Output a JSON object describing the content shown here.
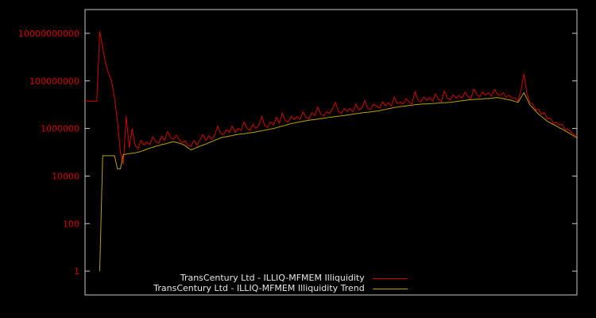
{
  "page": {
    "background": "#000000"
  },
  "chart_data": {
    "type": "line",
    "title": "",
    "xlabel": "",
    "ylabel": "",
    "yscale": "log",
    "ylim": [
      0.1,
      100000000000.0
    ],
    "grid": false,
    "legend_position": "bottom-center",
    "colors": {
      "background": "#000000",
      "border": "#c8c8c8",
      "tick_label": "#d40000",
      "legend_text": "#e6e6e6"
    },
    "yticks": [
      {
        "value": 1,
        "label": "1"
      },
      {
        "value": 100,
        "label": "100"
      },
      {
        "value": 10000,
        "label": "10000"
      },
      {
        "value": 1000000,
        "label": "1000000"
      },
      {
        "value": 100000000,
        "label": "100000000"
      },
      {
        "value": 10000000000,
        "label": "10000000000"
      }
    ],
    "x_description": "observation index (x axis has no visible tick labels)",
    "series": [
      {
        "name": "TransCentury Ltd - ILLIQ-MFMEM Illiquidity",
        "color": "#d40000",
        "values": [
          14000000.0,
          14000000.0,
          14000000.0,
          14000000.0,
          14000000.0,
          12000000000.0,
          2500000000.0,
          560000000.0,
          200000000.0,
          100000000.0,
          20000000.0,
          2000000.0,
          100000.0,
          32000.0,
          3200000.0,
          160000.0,
          1000000.0,
          200000.0,
          140000.0,
          320000.0,
          200000.0,
          270000.0,
          210000.0,
          450000.0,
          280000.0,
          240000.0,
          470000.0,
          310000.0,
          760000.0,
          410000.0,
          350000.0,
          520000.0,
          340000.0,
          250000.0,
          300000.0,
          190000.0,
          180000.0,
          310000.0,
          200000.0,
          320000.0,
          560000.0,
          310000.0,
          500000.0,
          350000.0,
          510000.0,
          1250000.0,
          630000.0,
          540000.0,
          900000.0,
          680000.0,
          1260000.0,
          680000.0,
          1000000.0,
          830000.0,
          1900000.0,
          1000000.0,
          830000.0,
          1500000.0,
          1000000.0,
          1350000.0,
          3200000.0,
          1350000.0,
          1100000.0,
          1900000.0,
          1400000.0,
          3000000.0,
          1650000.0,
          4500000.0,
          2100000.0,
          1860000.0,
          3200000.0,
          2400000.0,
          3200000.0,
          2400000.0,
          5000000.0,
          3000000.0,
          2500000.0,
          4600000.0,
          3400000.0,
          7900000.0,
          4100000.0,
          3400000.0,
          5000000.0,
          4200000.0,
          6700000.0,
          12600000.0,
          5200000.0,
          4300000.0,
          7000000.0,
          5200000.0,
          6800000.0,
          5000000.0,
          10500000.0,
          6000000.0,
          7100000.0,
          15000000.0,
          6800000.0,
          6300000.0,
          10400000.0,
          8600000.0,
          7100000.0,
          13500000.0,
          8900000.0,
          12000000.0,
          8900000.0,
          21000000.0,
          11000000.0,
          13000000.0,
          10700000.0,
          18000000.0,
          13000000.0,
          10700000.0,
          35000000.0,
          16000000.0,
          13000000.0,
          21000000.0,
          15000000.0,
          20000000.0,
          14000000.0,
          29000000.0,
          16500000.0,
          13500000.0,
          38000000.0,
          19000000.0,
          16000000.0,
          26000000.0,
          19000000.0,
          25000000.0,
          18600000.0,
          34000000.0,
          22000000.0,
          18000000.0,
          47000000.0,
          27000000.0,
          21000000.0,
          35000000.0,
          25000000.0,
          32000000.0,
          23000000.0,
          44000000.0,
          28000000.0,
          24000000.0,
          32000000.0,
          21000000.0,
          25000000.0,
          19000000.0,
          19000000.0,
          14000000.0,
          40000000.0,
          200000000.0,
          29000000.0,
          12600000.0,
          10500000.0,
          6000000.0,
          6300000.0,
          4000000.0,
          4500000.0,
          2500000.0,
          2700000.0,
          1660000.0,
          1800000.0,
          1350000.0,
          1500000.0,
          890000.0,
          960000.0,
          710000.0,
          540000.0,
          500000.0
        ]
      },
      {
        "name": "TransCentury Ltd - ILLIQ-MFMEM Illiquidity Trend",
        "color": "#b8a000",
        "values": [
          null,
          null,
          null,
          null,
          null,
          1,
          71000.0,
          71000.0,
          71000.0,
          71000.0,
          71000.0,
          20000.0,
          20000.0,
          79000.0,
          83000.0,
          87000.0,
          91000.0,
          95000.0,
          100000.0,
          110000.0,
          120000.0,
          135000.0,
          150000.0,
          160000.0,
          180000.0,
          190000.0,
          210000.0,
          220000.0,
          240000.0,
          260000.0,
          280000.0,
          260000.0,
          240000.0,
          220000.0,
          190000.0,
          150000.0,
          126000.0,
          140000.0,
          160000.0,
          180000.0,
          200000.0,
          220000.0,
          250000.0,
          280000.0,
          320000.0,
          350000.0,
          400000.0,
          430000.0,
          450000.0,
          480000.0,
          500000.0,
          540000.0,
          560000.0,
          590000.0,
          600000.0,
          630000.0,
          660000.0,
          680000.0,
          710000.0,
          760000.0,
          790000.0,
          850000.0,
          890000.0,
          950000.0,
          1000000.0,
          1070000.0,
          1170000.0,
          1260000.0,
          1350000.0,
          1480000.0,
          1600000.0,
          1700000.0,
          1800000.0,
          1900000.0,
          2000000.0,
          2100000.0,
          2200000.0,
          2300000.0,
          2400000.0,
          2500000.0,
          2600000.0,
          2700000.0,
          2800000.0,
          3000000.0,
          3000000.0,
          3200000.0,
          3300000.0,
          3400000.0,
          3500000.0,
          3700000.0,
          3800000.0,
          4000000.0,
          4200000.0,
          4300000.0,
          4500000.0,
          4700000.0,
          4800000.0,
          5000000.0,
          5200000.0,
          5400000.0,
          5600000.0,
          6000000.0,
          6300000.0,
          6800000.0,
          7100000.0,
          7600000.0,
          7900000.0,
          8300000.0,
          8500000.0,
          8900000.0,
          9300000.0,
          9500000.0,
          10000000.0,
          10200000.0,
          10500000.0,
          10700000.0,
          10700000.0,
          11000000.0,
          11200000.0,
          11500000.0,
          11700000.0,
          12000000.0,
          12000000.0,
          12300000.0,
          12600000.0,
          13000000.0,
          13500000.0,
          14000000.0,
          14800000.0,
          15000000.0,
          16000000.0,
          16200000.0,
          16600000.0,
          17000000.0,
          17000000.0,
          17400000.0,
          18000000.0,
          18000000.0,
          18600000.0,
          19500000.0,
          20000000.0,
          19000000.0,
          18000000.0,
          17000000.0,
          16000000.0,
          15000000.0,
          13500000.0,
          12600000.0,
          20000000.0,
          32000000.0,
          18000000.0,
          10000000.0,
          7400000.0,
          5400000.0,
          4000000.0,
          3200000.0,
          2500000.0,
          2000000.0,
          1700000.0,
          1480000.0,
          1260000.0,
          1070000.0,
          930000.0,
          790000.0,
          680000.0,
          560000.0,
          480000.0,
          400000.0
        ]
      }
    ]
  },
  "legend": {
    "items": [
      {
        "label": "TransCentury Ltd - ILLIQ-MFMEM Illiquidity"
      },
      {
        "label": "TransCentury Ltd - ILLIQ-MFMEM Illiquidity Trend"
      }
    ]
  }
}
